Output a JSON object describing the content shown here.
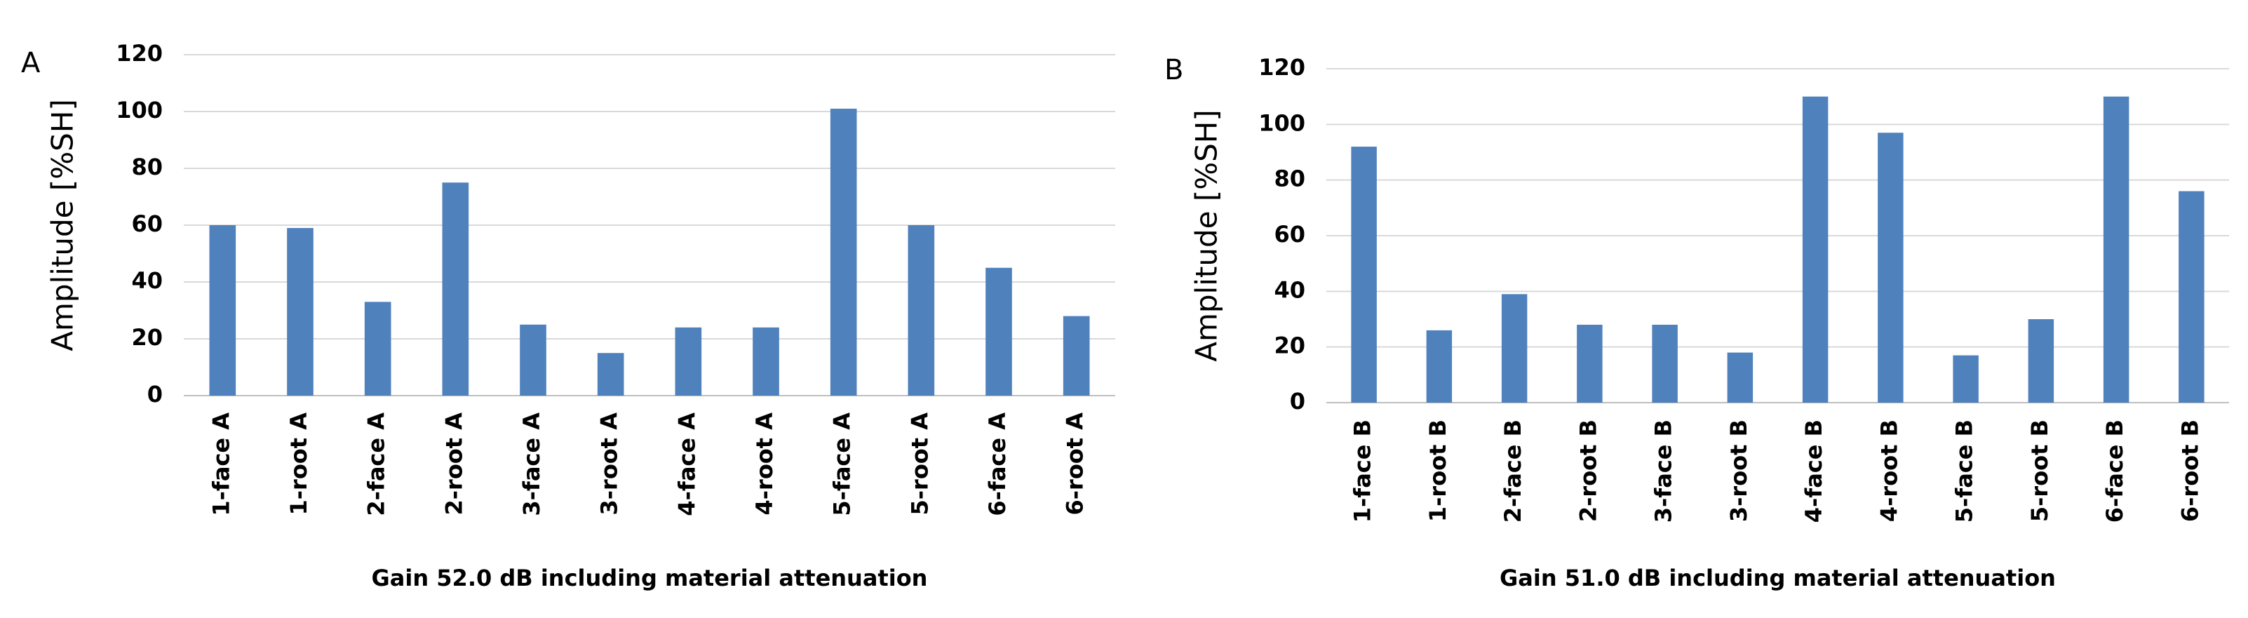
{
  "chart_data": [
    {
      "type": "bar",
      "panel_label": "A",
      "y_label": "Amplitude [%SH]",
      "x_label": "Gain 52.0 dB including material attenuation",
      "categories": [
        "1-face A",
        "1-root A",
        "2-face A",
        "2-root A",
        "3-face A",
        "3-root A",
        "4-face A",
        "4-root A",
        "5-face A",
        "5-root A",
        "6-face A",
        "6-root A"
      ],
      "values": [
        60,
        59,
        33,
        75,
        25,
        15,
        24,
        24,
        101,
        60,
        45,
        28
      ],
      "color": "#4f81bd",
      "ylim": [
        0,
        120
      ],
      "yticks": [
        0,
        20,
        40,
        60,
        80,
        100,
        120
      ],
      "grid": true
    },
    {
      "type": "bar",
      "panel_label": "B",
      "y_label": "Amplitude [%SH]",
      "x_label": "Gain 51.0 dB including material attenuation",
      "categories": [
        "1-face B",
        "1-root B",
        "2-face B",
        "2-root B",
        "3-face B",
        "3-root B",
        "4-face B",
        "4-root B",
        "5-face B",
        "5-root B",
        "6-face B",
        "6-root B"
      ],
      "values": [
        92,
        26,
        39,
        28,
        28,
        18,
        110,
        97,
        17,
        30,
        110,
        76
      ],
      "color": "#4f81bd",
      "ylim": [
        0,
        120
      ],
      "yticks": [
        0,
        20,
        40,
        60,
        80,
        100,
        120
      ],
      "grid": true
    }
  ]
}
